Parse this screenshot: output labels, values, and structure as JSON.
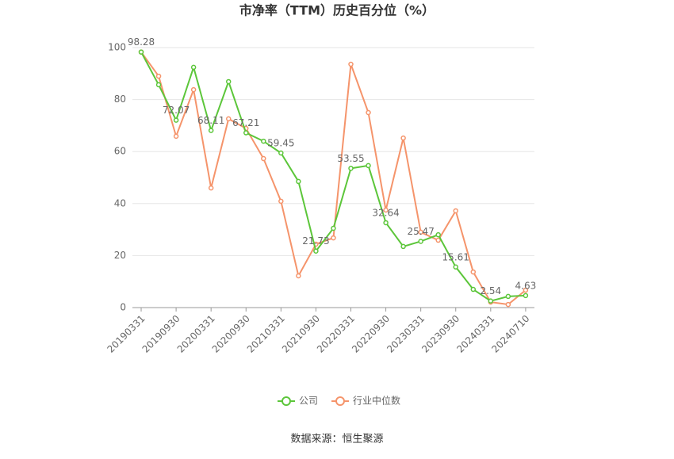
{
  "chart_data": {
    "type": "line",
    "title": "市净率（TTM）历史百分位（%）",
    "categories": [
      "20190331",
      null,
      "20190930",
      null,
      "20200331",
      null,
      "20200930",
      null,
      "20210331",
      null,
      "20210930",
      null,
      "20220331",
      null,
      "20220930",
      null,
      "20230331",
      null,
      "20230930",
      null,
      "20240331",
      null,
      "20240710"
    ],
    "series": [
      {
        "name": "公司",
        "color": "#5cc63a",
        "values": [
          98.28,
          85.7,
          72.07,
          92.4,
          68.11,
          86.9,
          67.21,
          64.0,
          59.45,
          48.5,
          21.73,
          30.5,
          53.55,
          54.6,
          32.64,
          23.5,
          25.47,
          28.0,
          15.61,
          7.0,
          2.54,
          4.3,
          4.63
        ]
      },
      {
        "name": "行业中位数",
        "color": "#f5946b",
        "values": [
          98.3,
          89.0,
          65.9,
          83.8,
          46.0,
          72.6,
          68.9,
          57.3,
          40.9,
          12.2,
          24.4,
          26.8,
          93.6,
          75.0,
          37.5,
          65.2,
          29.0,
          25.9,
          37.2,
          13.7,
          2.1,
          1.2,
          6.7
        ]
      }
    ],
    "ylim": [
      0,
      100
    ],
    "yticks": [
      0,
      20,
      40,
      60,
      80,
      100
    ],
    "grid": true,
    "source": "数据来源：恒生聚源"
  }
}
